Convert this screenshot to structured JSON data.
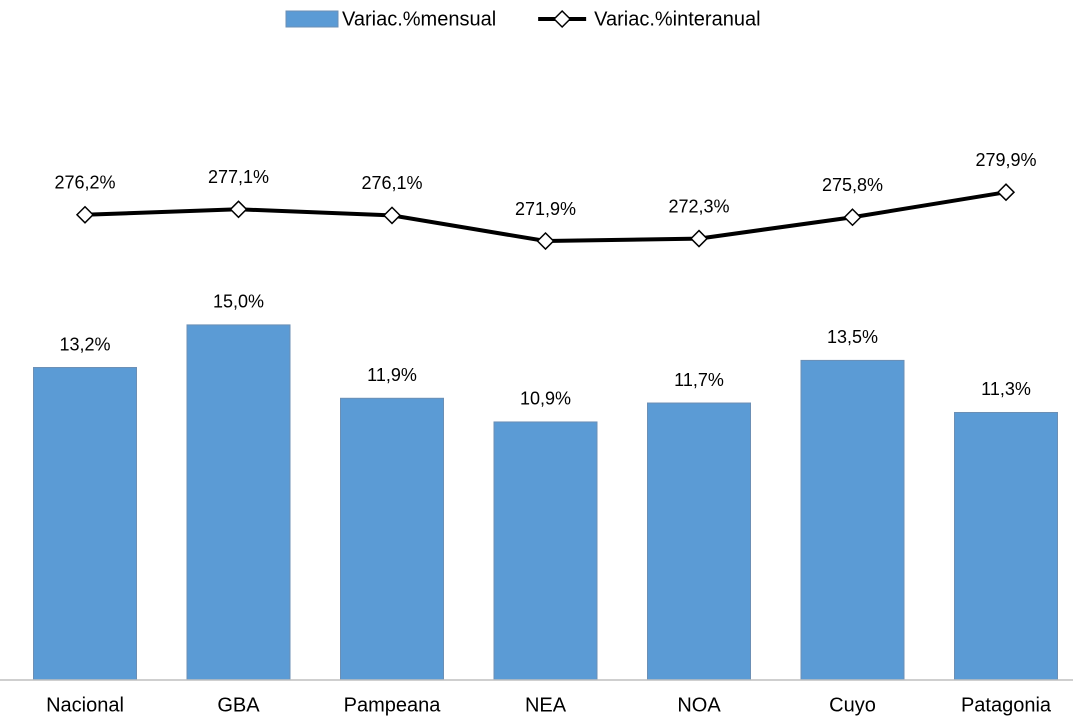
{
  "chart_data": {
    "type": "bar",
    "categories": [
      "Nacional",
      "GBA",
      "Pampeana",
      "NEA",
      "NOA",
      "Cuyo",
      "Patagonia"
    ],
    "series": [
      {
        "name": "Variac.%mensual",
        "type": "bar",
        "color": "#5b9bd5",
        "values": [
          13.2,
          15.0,
          11.9,
          10.9,
          11.7,
          13.5,
          11.3
        ],
        "value_labels": [
          "13,2%",
          "15,0%",
          "11,9%",
          "10,9%",
          "11,7%",
          "13,5%",
          "11,3%"
        ]
      },
      {
        "name": "Variac.%interanual",
        "type": "line",
        "axis": "y2",
        "color": "#000000",
        "values": [
          276.2,
          277.1,
          276.1,
          271.9,
          272.3,
          275.8,
          279.9
        ],
        "value_labels": [
          "276,2%",
          "277,1%",
          "276,1%",
          "271,9%",
          "272,3%",
          "275,8%",
          "279,9%"
        ]
      }
    ],
    "ylim": [
      0,
      24.5
    ],
    "y2lim": [
      200,
      295
    ],
    "legend": "top"
  }
}
